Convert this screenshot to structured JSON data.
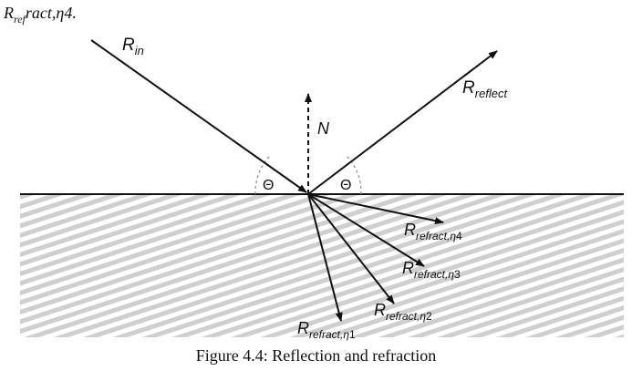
{
  "header_text": {
    "main_prefix": "R",
    "sub": "ref",
    "suffix": "ract,η4."
  },
  "diagram": {
    "incoming": {
      "main": "R",
      "sub": "in"
    },
    "reflected": {
      "main": "R",
      "sub": "reflect"
    },
    "normal": {
      "label": "N"
    },
    "angle_left": {
      "label": "Θ"
    },
    "angle_right": {
      "label": "Θ"
    },
    "refract": [
      {
        "main": "R",
        "sub": "refract,η",
        "tail": "4"
      },
      {
        "main": "R",
        "sub": "refract,η",
        "tail": "3"
      },
      {
        "main": "R",
        "sub": "refract,η",
        "tail": "2"
      },
      {
        "main": "R",
        "sub": "refract,η",
        "tail": "1"
      }
    ]
  },
  "caption": "Figure 4.4: Reflection and refraction",
  "colors": {
    "ink": "#111111",
    "hatch": "#c8c8c8",
    "arc": "#888888"
  }
}
